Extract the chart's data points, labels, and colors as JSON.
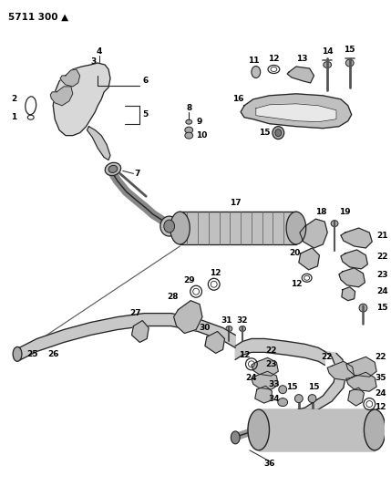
{
  "title": "5711 300 ▲",
  "bg_color": "#ffffff",
  "lc": "#222222",
  "figsize": [
    4.29,
    5.33
  ],
  "dpi": 100
}
